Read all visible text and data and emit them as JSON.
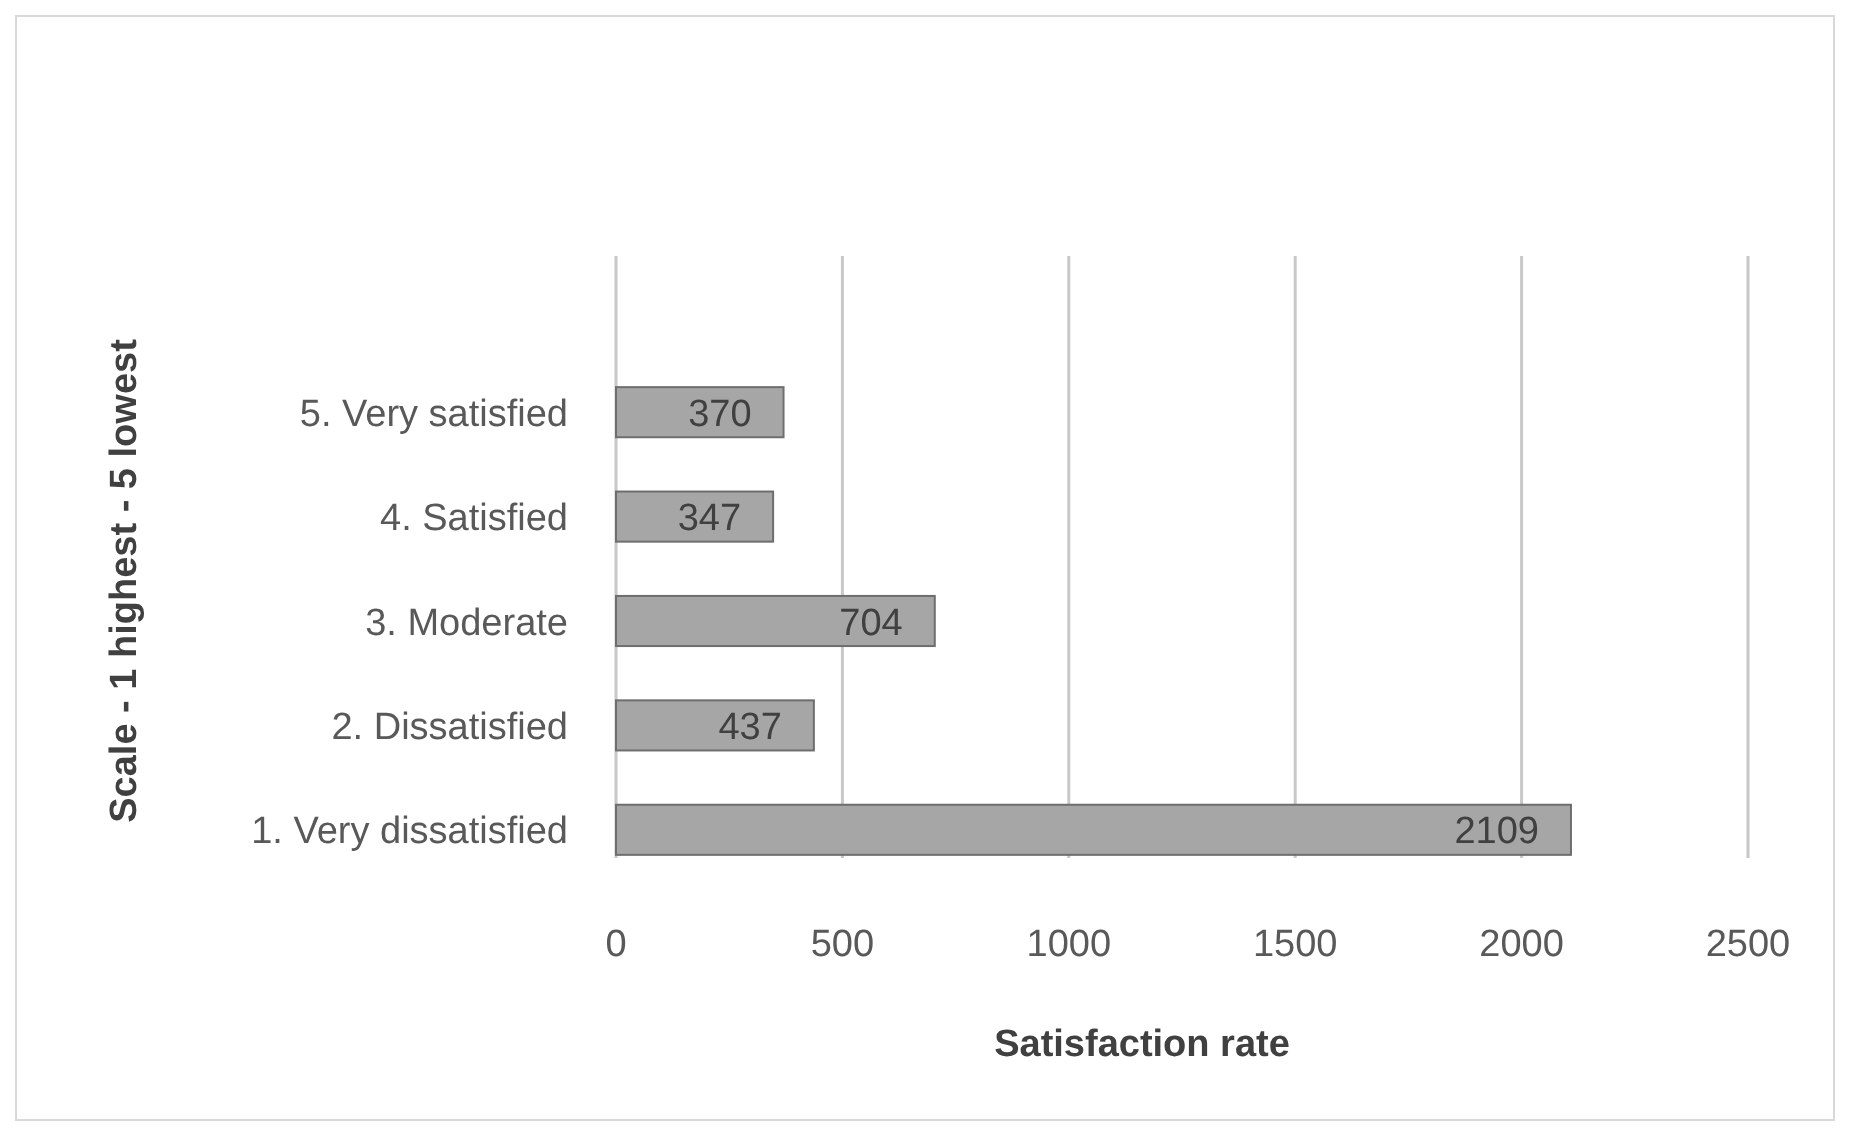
{
  "chart_data": {
    "type": "bar",
    "orientation": "horizontal",
    "xlabel": "Satisfaction rate",
    "ylabel": "Scale - 1 highest - 5 lowest",
    "categories": [
      "5. Very satisfied",
      "4. Satisfied",
      "3. Moderate",
      "2. Dissatisfied",
      "1. Very dissatisfied"
    ],
    "values": [
      370,
      347,
      704,
      437,
      2109
    ],
    "color": "#a6a6a6",
    "xlim": [
      0,
      2500
    ],
    "xticks": [
      0,
      500,
      1000,
      1500,
      2000,
      2500
    ],
    "grid": "x",
    "data_labels": true
  }
}
